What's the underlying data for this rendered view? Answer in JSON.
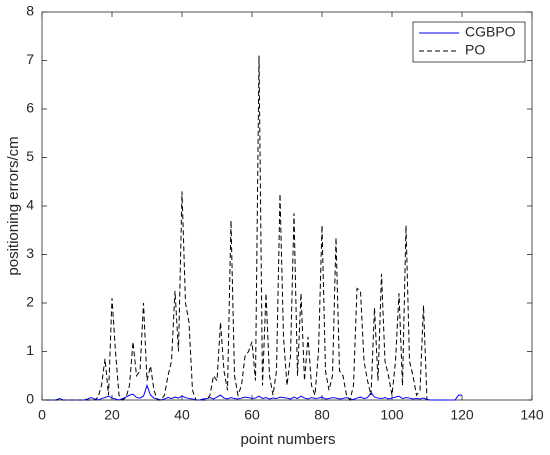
{
  "chart_data": {
    "type": "line",
    "xlabel": "point numbers",
    "ylabel": "positioning errors/cm",
    "x": [
      1,
      2,
      3,
      4,
      5,
      6,
      7,
      8,
      9,
      10,
      11,
      12,
      13,
      14,
      15,
      16,
      17,
      18,
      19,
      20,
      21,
      22,
      23,
      24,
      25,
      26,
      27,
      28,
      29,
      30,
      31,
      32,
      33,
      34,
      35,
      36,
      37,
      38,
      39,
      40,
      41,
      42,
      43,
      44,
      45,
      46,
      47,
      48,
      49,
      50,
      51,
      52,
      53,
      54,
      55,
      56,
      57,
      58,
      59,
      60,
      61,
      62,
      63,
      64,
      65,
      66,
      67,
      68,
      69,
      70,
      71,
      72,
      73,
      74,
      75,
      76,
      77,
      78,
      79,
      80,
      81,
      82,
      83,
      84,
      85,
      86,
      87,
      88,
      89,
      90,
      91,
      92,
      93,
      94,
      95,
      96,
      97,
      98,
      99,
      100,
      101,
      102,
      103,
      104,
      105,
      106,
      107,
      108,
      109,
      110,
      111,
      112,
      113,
      114,
      115,
      116,
      117,
      118,
      119,
      120
    ],
    "series": [
      {
        "name": "CGBPO",
        "color": "#0000ff",
        "dash": false,
        "values": [
          0,
          0,
          0,
          0,
          0.03,
          0,
          0,
          0,
          0,
          0,
          0,
          0,
          0.02,
          0.05,
          0.02,
          0,
          0.03,
          0.05,
          0.08,
          0.04,
          0.02,
          0,
          0.03,
          0.06,
          0.1,
          0.12,
          0.05,
          0.04,
          0.08,
          0.3,
          0.1,
          0.04,
          0.02,
          0,
          0.02,
          0.05,
          0.03,
          0.06,
          0.04,
          0.08,
          0.05,
          0.03,
          0.02,
          0,
          0,
          0.02,
          0.03,
          0.05,
          0.02,
          0.06,
          0.1,
          0.04,
          0.02,
          0.05,
          0.03,
          0.02,
          0.04,
          0.06,
          0.05,
          0.03,
          0.04,
          0.08,
          0.03,
          0.05,
          0.02,
          0.04,
          0.03,
          0.06,
          0.05,
          0.04,
          0.02,
          0.06,
          0.03,
          0.08,
          0.04,
          0.02,
          0.05,
          0.03,
          0.04,
          0.06,
          0.02,
          0.03,
          0.05,
          0.04,
          0.02,
          0.03,
          0.05,
          0.02,
          0.01,
          0.04,
          0.06,
          0.03,
          0.05,
          0.15,
          0.06,
          0.04,
          0.03,
          0.05,
          0.02,
          0.04,
          0.06,
          0.08,
          0.03,
          0.05,
          0.04,
          0.02,
          0.03,
          0.02,
          0.04,
          0.01,
          0,
          0,
          0,
          0,
          0,
          0,
          0,
          0,
          0.1,
          0.1
        ]
      },
      {
        "name": "PO",
        "color": "#000000",
        "dash": true,
        "values": [
          0,
          0,
          0,
          0,
          0,
          0,
          0,
          0,
          0,
          0,
          0,
          0,
          0,
          0,
          0,
          0.05,
          0.3,
          0.85,
          0.1,
          2.1,
          1.0,
          0.1,
          0,
          0.05,
          0.3,
          1.2,
          0.5,
          0.6,
          2.0,
          0.4,
          0.7,
          0.2,
          0,
          0,
          0.1,
          0.5,
          0.8,
          2.25,
          1.0,
          4.3,
          2.0,
          1.6,
          0.2,
          0,
          0,
          0,
          0,
          0.1,
          0.5,
          0.4,
          1.6,
          0.6,
          0.2,
          3.7,
          0.5,
          0.1,
          0.3,
          0.9,
          1.0,
          1.2,
          0.4,
          7.1,
          0.3,
          2.2,
          0.5,
          0.1,
          0.6,
          4.25,
          1.3,
          0.3,
          0.9,
          3.85,
          0.5,
          2.2,
          0.4,
          1.3,
          0.3,
          0.1,
          1.0,
          3.6,
          0.6,
          0.2,
          0.5,
          3.35,
          0.6,
          0.5,
          0.1,
          0,
          0.3,
          2.3,
          2.25,
          0.8,
          0.4,
          0.1,
          1.9,
          0.4,
          2.6,
          0.8,
          0.5,
          0.1,
          0.8,
          2.2,
          0.3,
          3.6,
          0.8,
          0.5,
          0.1,
          0.2,
          1.95,
          0,
          null,
          null,
          null,
          null,
          null,
          null,
          null,
          null,
          null,
          null
        ]
      }
    ],
    "xlim": [
      0,
      140
    ],
    "xticks": [
      0,
      20,
      40,
      60,
      80,
      100,
      120,
      140
    ],
    "ylim": [
      0,
      8
    ],
    "yticks": [
      0,
      1,
      2,
      3,
      4,
      5,
      6,
      7,
      8
    ],
    "legend": "upper right"
  }
}
